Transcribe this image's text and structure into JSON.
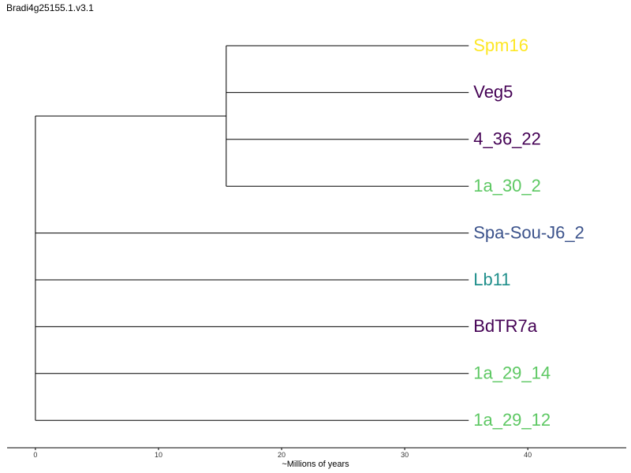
{
  "title": "Bradi4g25155.1.v3.1",
  "axis": {
    "label": "~Millions of years",
    "range": [
      -2.3,
      48
    ],
    "ticks": [
      0,
      10,
      20,
      30,
      40
    ]
  },
  "tips": [
    {
      "label": "Spm16",
      "color": "#FDE725"
    },
    {
      "label": "Veg5",
      "color": "#440154"
    },
    {
      "label": "4_36_22",
      "color": "#440154"
    },
    {
      "label": "1a_30_2",
      "color": "#5DC863"
    },
    {
      "label": "Spa-Sou-J6_2",
      "color": "#3B528B"
    },
    {
      "label": "Lb11",
      "color": "#21908C"
    },
    {
      "label": "BdTR7a",
      "color": "#440154"
    },
    {
      "label": "1a_29_14",
      "color": "#5DC863"
    },
    {
      "label": "1a_29_12",
      "color": "#5DC863"
    }
  ],
  "tree": {
    "root_age": 0,
    "tip_age": 35.2,
    "clade_node_age": 15.5,
    "clade_tips": [
      0,
      1,
      2,
      3
    ],
    "root_children": [
      "clade",
      4,
      5,
      6,
      7,
      8
    ]
  }
}
